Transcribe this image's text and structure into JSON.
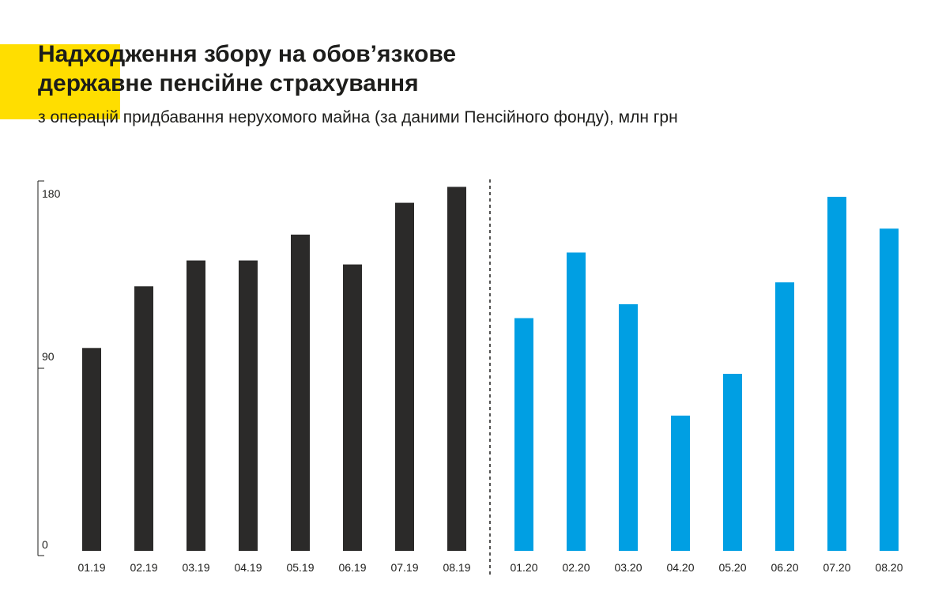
{
  "header": {
    "title_line1": "Надходження збору на обов’язкове",
    "title_line2": "державне пенсійне страхування",
    "subtitle": "з операцій придбавання нерухомого майна (за даними Пенсійного фонду), млн грн"
  },
  "colors": {
    "accent": "#FFDE00",
    "series_2019": "#2b2a29",
    "series_2020": "#009FE3",
    "text": "#1d1d1b"
  },
  "chart_data": {
    "type": "bar",
    "title": "Надходження збору на обов’язкове державне пенсійне страхування",
    "subtitle": "з операцій придбавання нерухомого майна (за даними Пенсійного фонду), млн грн",
    "ylim": [
      0,
      180
    ],
    "yticks": [
      "0",
      "90",
      "180"
    ],
    "grid": false,
    "legend": "none",
    "separator": "dashed vertical line between 08.19 and 01.20",
    "groups": [
      {
        "categories": [
          "01.19",
          "02.19",
          "03.19",
          "04.19",
          "05.19",
          "06.19",
          "07.19",
          "08.19"
        ],
        "values": [
          102,
          133,
          146,
          146,
          159,
          144,
          175,
          183
        ],
        "color": "#2b2a29"
      },
      {
        "categories": [
          "01.20",
          "02.20",
          "03.20",
          "04.20",
          "05.20",
          "06.20",
          "07.20",
          "08.20"
        ],
        "values": [
          117,
          150,
          124,
          68,
          89,
          135,
          178,
          162
        ],
        "color": "#009FE3"
      }
    ]
  }
}
